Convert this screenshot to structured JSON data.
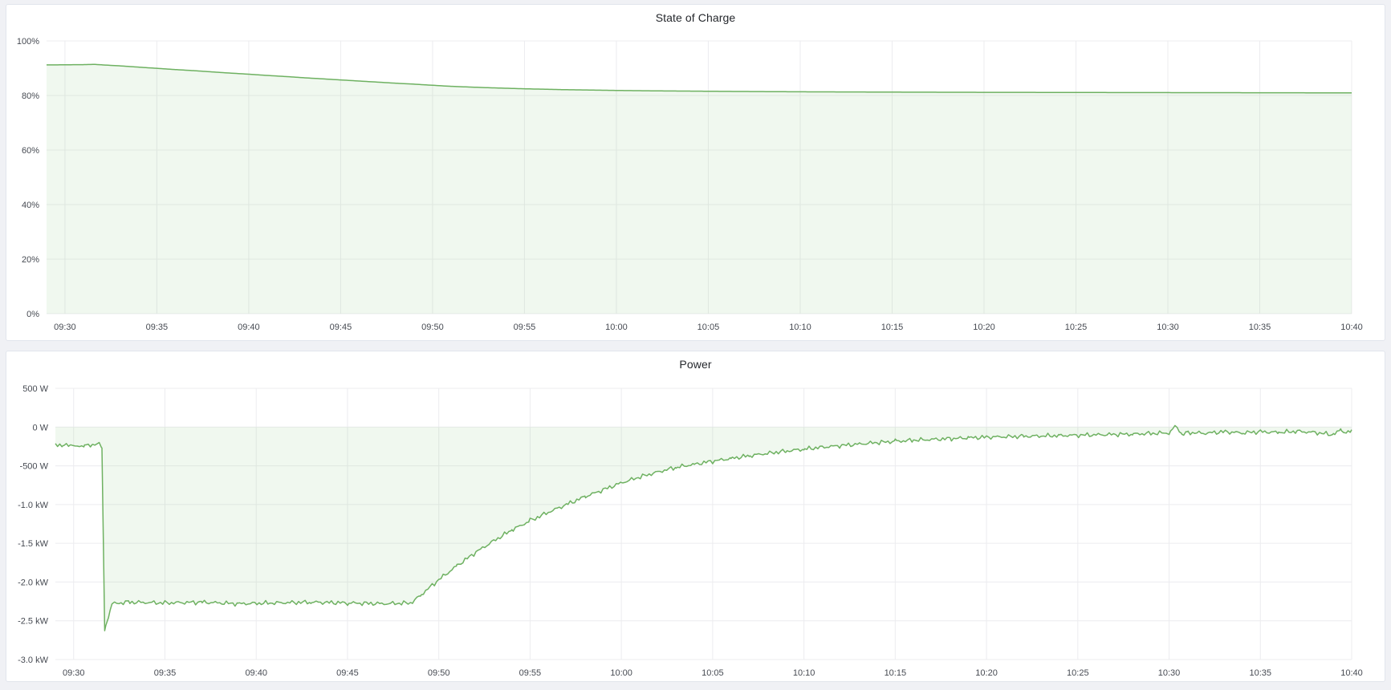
{
  "app": {
    "kind": "grafana-style-dashboard",
    "colors": {
      "canvas_bg": "#f0f1f5",
      "panel_bg": "#ffffff",
      "panel_border": "#e2e5ec",
      "grid": "#ececef",
      "axis_text": "#464a52",
      "title_text": "#24272c",
      "series_line": "#6eb161",
      "series_fill": "rgba(115,191,105,0.11)"
    }
  },
  "panels": [
    {
      "title": "State of Charge",
      "chart_data": {
        "type": "area",
        "title": "State of Charge",
        "x_axis": {
          "unit": "time",
          "start": "09:29",
          "end": "10:40",
          "tick_labels": [
            "09:30",
            "09:35",
            "09:40",
            "09:45",
            "09:50",
            "09:55",
            "10:00",
            "10:05",
            "10:10",
            "10:15",
            "10:20",
            "10:25",
            "10:30",
            "10:35",
            "10:40"
          ],
          "tick_minutes_after_0930": [
            0,
            5,
            10,
            15,
            20,
            25,
            30,
            35,
            40,
            45,
            50,
            55,
            60,
            65,
            70
          ]
        },
        "y_axis": {
          "unit": "%",
          "range": [
            0,
            100
          ],
          "tick_labels": [
            "100%",
            "80%",
            "60%",
            "40%",
            "20%",
            "0%"
          ],
          "tick_values": [
            100,
            80,
            60,
            40,
            20,
            0
          ]
        },
        "grid": true,
        "legend": "none",
        "fill_baseline_value": 0,
        "noise_amplitude": 0,
        "series": [
          {
            "name": "State of Charge",
            "x_minutes_after_0930": [
              -1,
              0,
              1,
              1.6,
              2.2,
              3,
              4,
              5,
              6,
              7,
              8,
              9,
              10,
              11,
              12,
              13,
              14,
              15,
              16,
              17,
              18,
              19,
              19.6,
              21,
              22,
              23,
              25,
              27,
              29,
              30,
              32,
              34,
              36,
              38,
              40,
              43,
              46,
              50,
              55,
              60,
              65,
              70
            ],
            "values_percent": [
              91.2,
              91.25,
              91.3,
              91.4,
              91.15,
              90.85,
              90.4,
              89.95,
              89.5,
              89.1,
              88.65,
              88.2,
              87.8,
              87.35,
              86.95,
              86.5,
              86.1,
              85.7,
              85.3,
              84.9,
              84.5,
              84.15,
              83.9,
              83.35,
              83.1,
              82.85,
              82.45,
              82.15,
              81.95,
              81.85,
              81.7,
              81.6,
              81.5,
              81.42,
              81.35,
              81.28,
              81.22,
              81.15,
              81.1,
              81.05,
              81.0,
              80.95
            ]
          }
        ]
      }
    },
    {
      "title": "Power",
      "chart_data": {
        "type": "area",
        "title": "Power",
        "x_axis": {
          "unit": "time",
          "start": "09:29",
          "end": "10:40",
          "tick_labels": [
            "09:30",
            "09:35",
            "09:40",
            "09:45",
            "09:50",
            "09:55",
            "10:00",
            "10:05",
            "10:10",
            "10:15",
            "10:20",
            "10:25",
            "10:30",
            "10:35",
            "10:40"
          ],
          "tick_minutes_after_0930": [
            0,
            5,
            10,
            15,
            20,
            25,
            30,
            35,
            40,
            45,
            50,
            55,
            60,
            65,
            70
          ]
        },
        "y_axis": {
          "unit": "W",
          "range": [
            -3.0,
            0.5
          ],
          "tick_labels": [
            "500 W",
            "0 W",
            "-500 W",
            "-1.0 kW",
            "-1.5 kW",
            "-2.0 kW",
            "-2.5 kW",
            "-3.0 kW"
          ],
          "tick_values": [
            0.5,
            0,
            -0.5,
            -1.0,
            -1.5,
            -2.0,
            -2.5,
            -3.0
          ]
        },
        "grid": true,
        "legend": "none",
        "fill_baseline_value": 0,
        "noise_amplitude": 0.035,
        "series": [
          {
            "name": "Power",
            "x_minutes_after_0930": [
              -1,
              -0.6,
              -0.2,
              0.2,
              0.6,
              1,
              1.3,
              1.55,
              1.7,
              1.9,
              2.1,
              3,
              5,
              7,
              9,
              11,
              13,
              15,
              17,
              18.5,
              19,
              20,
              21,
              22,
              23,
              24,
              25,
              26,
              27,
              28,
              29,
              30,
              31,
              32,
              33,
              34,
              35,
              36,
              37,
              38,
              39,
              40,
              41,
              42,
              43,
              44,
              45,
              46,
              47,
              48,
              49,
              50,
              52,
              54,
              56,
              58,
              60,
              60.4,
              60.7,
              61,
              62,
              63,
              64,
              65,
              66,
              67,
              68,
              69,
              69.4,
              69.7,
              70
            ],
            "values_kw": [
              -0.21,
              -0.25,
              -0.22,
              -0.26,
              -0.23,
              -0.25,
              -0.19,
              -0.27,
              -2.62,
              -2.44,
              -2.28,
              -2.26,
              -2.27,
              -2.26,
              -2.28,
              -2.27,
              -2.26,
              -2.27,
              -2.28,
              -2.27,
              -2.17,
              -1.97,
              -1.79,
              -1.62,
              -1.47,
              -1.33,
              -1.21,
              -1.1,
              -1.0,
              -0.9,
              -0.81,
              -0.72,
              -0.645,
              -0.58,
              -0.52,
              -0.48,
              -0.44,
              -0.405,
              -0.37,
              -0.34,
              -0.31,
              -0.285,
              -0.26,
              -0.24,
              -0.22,
              -0.2,
              -0.185,
              -0.17,
              -0.16,
              -0.15,
              -0.14,
              -0.13,
              -0.12,
              -0.11,
              -0.1,
              -0.09,
              -0.075,
              0.02,
              -0.1,
              -0.07,
              -0.08,
              -0.06,
              -0.075,
              -0.06,
              -0.07,
              -0.055,
              -0.07,
              -0.1,
              -0.04,
              -0.07,
              -0.06
            ]
          }
        ]
      }
    }
  ]
}
